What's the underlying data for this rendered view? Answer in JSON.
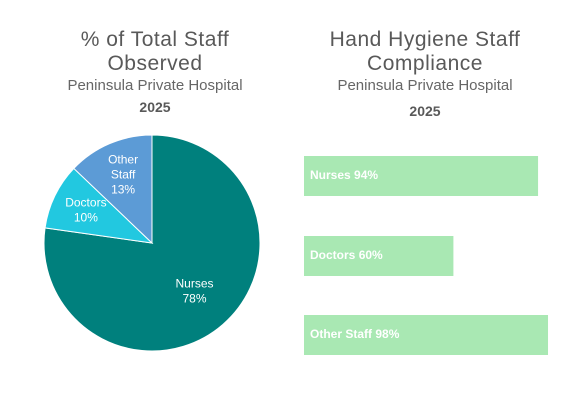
{
  "chart_data": [
    {
      "type": "pie",
      "title": "% of Total Staff Observed",
      "subtitle": "Peninsula Private Hospital",
      "year": "2025",
      "categories": [
        "Nurses",
        "Doctors",
        "Other Staff"
      ],
      "values": [
        78,
        10,
        13
      ],
      "value_labels": [
        "78%",
        "10%",
        "13%"
      ],
      "colors": [
        "#00807d",
        "#22c8e0",
        "#5c9bd6"
      ]
    },
    {
      "type": "hbar",
      "title": "Hand Hygiene Staff Compliance",
      "subtitle": "Peninsula Private Hospital",
      "year": "2025",
      "categories": [
        "Nurses",
        "Doctors",
        "Other Staff"
      ],
      "values": [
        94,
        60,
        98
      ],
      "value_labels": [
        "94%",
        "60%",
        "98%"
      ],
      "color": "#a9e8b3",
      "xlim": [
        0,
        100
      ]
    }
  ]
}
